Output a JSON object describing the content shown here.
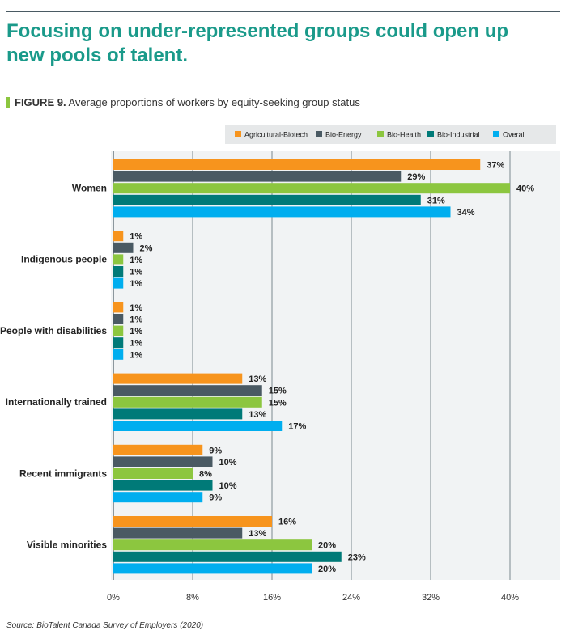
{
  "header": {
    "headline": "Focusing on under-represented groups could open up new pools of talent."
  },
  "figure": {
    "number": "FIGURE 9.",
    "caption": "Average proportions of workers by equity-seeking group status"
  },
  "source": "Source: BioTalent Canada Survey of Employers (2020)",
  "chart_data": {
    "type": "bar",
    "orientation": "horizontal",
    "categories": [
      "Women",
      "Indigenous people",
      "People with disabilities",
      "Internationally trained",
      "Recent immigrants",
      "Visible minorities"
    ],
    "series": [
      {
        "name": "Agricultural-Biotech",
        "color": "#f7941d",
        "values": [
          37,
          1,
          1,
          13,
          9,
          16
        ]
      },
      {
        "name": "Bio-Energy",
        "color": "#4a5a63",
        "values": [
          29,
          2,
          1,
          15,
          10,
          13
        ]
      },
      {
        "name": "Bio-Health",
        "color": "#8cc63f",
        "values": [
          40,
          1,
          1,
          15,
          8,
          20
        ]
      },
      {
        "name": "Bio-Industrial",
        "color": "#007a78",
        "values": [
          31,
          1,
          1,
          13,
          10,
          23
        ]
      },
      {
        "name": "Overall",
        "color": "#00aeef",
        "values": [
          34,
          1,
          1,
          17,
          9,
          20
        ]
      }
    ],
    "xlim": [
      0,
      40
    ],
    "xticks": [
      "0%",
      "8%",
      "16%",
      "24%",
      "32%",
      "40%"
    ],
    "value_suffix": "%",
    "grid": true,
    "legend_position": "top-right"
  }
}
